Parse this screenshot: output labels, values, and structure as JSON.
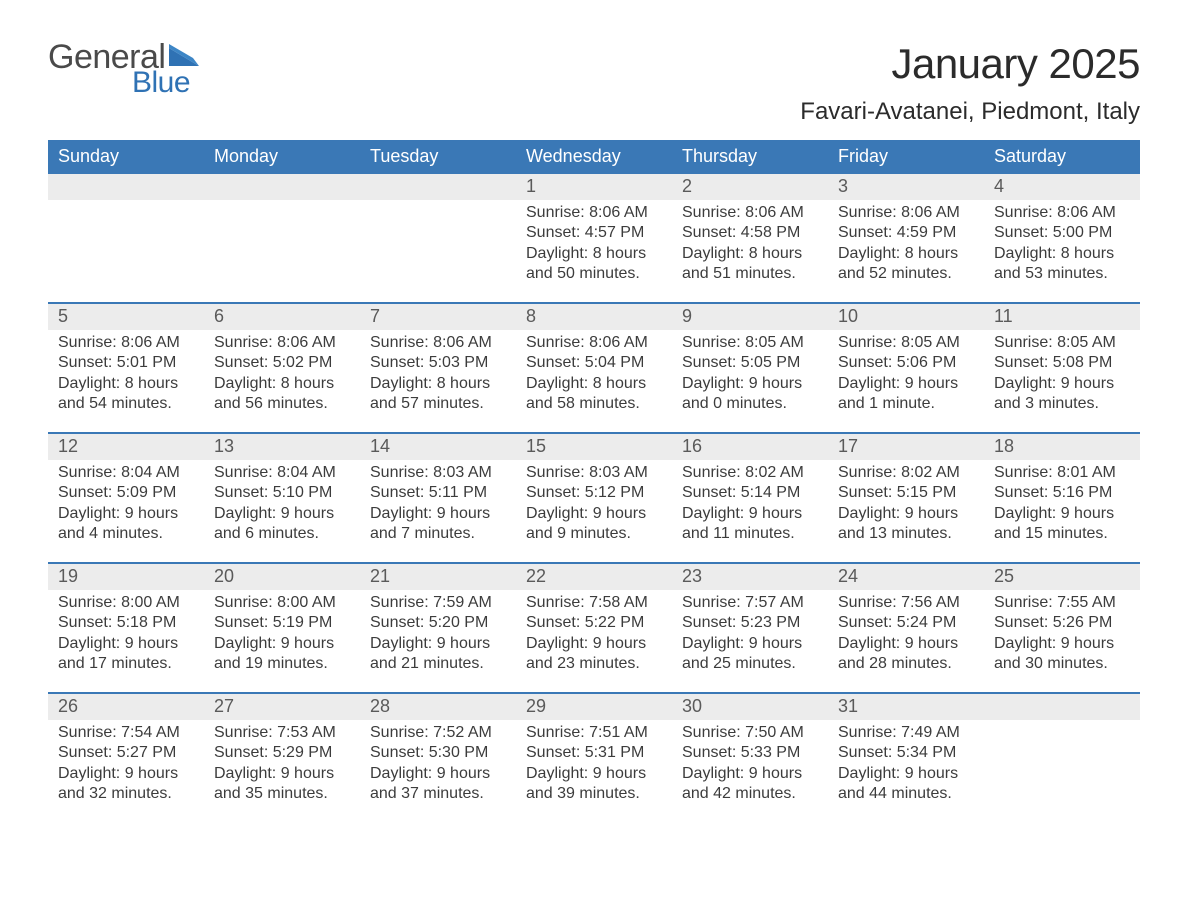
{
  "logo": {
    "general": "General",
    "blue": "Blue",
    "accent": "#2f72b4",
    "gray": "#4a4a4a"
  },
  "title": "January 2025",
  "location": "Favari-Avatanei, Piedmont, Italy",
  "colors": {
    "header_bg": "#3a78b6",
    "header_text": "#ffffff",
    "daynum_bg": "#ececec",
    "text": "#3c3c3c",
    "row_divider": "#3a78b6",
    "page_bg": "#ffffff"
  },
  "days_of_week": [
    "Sunday",
    "Monday",
    "Tuesday",
    "Wednesday",
    "Thursday",
    "Friday",
    "Saturday"
  ],
  "weeks": [
    [
      {
        "n": "",
        "sunrise": "",
        "sunset": "",
        "daylight1": "",
        "daylight2": "",
        "empty": true
      },
      {
        "n": "",
        "sunrise": "",
        "sunset": "",
        "daylight1": "",
        "daylight2": "",
        "empty": true
      },
      {
        "n": "",
        "sunrise": "",
        "sunset": "",
        "daylight1": "",
        "daylight2": "",
        "empty": true
      },
      {
        "n": "1",
        "sunrise": "Sunrise: 8:06 AM",
        "sunset": "Sunset: 4:57 PM",
        "daylight1": "Daylight: 8 hours",
        "daylight2": "and 50 minutes."
      },
      {
        "n": "2",
        "sunrise": "Sunrise: 8:06 AM",
        "sunset": "Sunset: 4:58 PM",
        "daylight1": "Daylight: 8 hours",
        "daylight2": "and 51 minutes."
      },
      {
        "n": "3",
        "sunrise": "Sunrise: 8:06 AM",
        "sunset": "Sunset: 4:59 PM",
        "daylight1": "Daylight: 8 hours",
        "daylight2": "and 52 minutes."
      },
      {
        "n": "4",
        "sunrise": "Sunrise: 8:06 AM",
        "sunset": "Sunset: 5:00 PM",
        "daylight1": "Daylight: 8 hours",
        "daylight2": "and 53 minutes."
      }
    ],
    [
      {
        "n": "5",
        "sunrise": "Sunrise: 8:06 AM",
        "sunset": "Sunset: 5:01 PM",
        "daylight1": "Daylight: 8 hours",
        "daylight2": "and 54 minutes."
      },
      {
        "n": "6",
        "sunrise": "Sunrise: 8:06 AM",
        "sunset": "Sunset: 5:02 PM",
        "daylight1": "Daylight: 8 hours",
        "daylight2": "and 56 minutes."
      },
      {
        "n": "7",
        "sunrise": "Sunrise: 8:06 AM",
        "sunset": "Sunset: 5:03 PM",
        "daylight1": "Daylight: 8 hours",
        "daylight2": "and 57 minutes."
      },
      {
        "n": "8",
        "sunrise": "Sunrise: 8:06 AM",
        "sunset": "Sunset: 5:04 PM",
        "daylight1": "Daylight: 8 hours",
        "daylight2": "and 58 minutes."
      },
      {
        "n": "9",
        "sunrise": "Sunrise: 8:05 AM",
        "sunset": "Sunset: 5:05 PM",
        "daylight1": "Daylight: 9 hours",
        "daylight2": "and 0 minutes."
      },
      {
        "n": "10",
        "sunrise": "Sunrise: 8:05 AM",
        "sunset": "Sunset: 5:06 PM",
        "daylight1": "Daylight: 9 hours",
        "daylight2": "and 1 minute."
      },
      {
        "n": "11",
        "sunrise": "Sunrise: 8:05 AM",
        "sunset": "Sunset: 5:08 PM",
        "daylight1": "Daylight: 9 hours",
        "daylight2": "and 3 minutes."
      }
    ],
    [
      {
        "n": "12",
        "sunrise": "Sunrise: 8:04 AM",
        "sunset": "Sunset: 5:09 PM",
        "daylight1": "Daylight: 9 hours",
        "daylight2": "and 4 minutes."
      },
      {
        "n": "13",
        "sunrise": "Sunrise: 8:04 AM",
        "sunset": "Sunset: 5:10 PM",
        "daylight1": "Daylight: 9 hours",
        "daylight2": "and 6 minutes."
      },
      {
        "n": "14",
        "sunrise": "Sunrise: 8:03 AM",
        "sunset": "Sunset: 5:11 PM",
        "daylight1": "Daylight: 9 hours",
        "daylight2": "and 7 minutes."
      },
      {
        "n": "15",
        "sunrise": "Sunrise: 8:03 AM",
        "sunset": "Sunset: 5:12 PM",
        "daylight1": "Daylight: 9 hours",
        "daylight2": "and 9 minutes."
      },
      {
        "n": "16",
        "sunrise": "Sunrise: 8:02 AM",
        "sunset": "Sunset: 5:14 PM",
        "daylight1": "Daylight: 9 hours",
        "daylight2": "and 11 minutes."
      },
      {
        "n": "17",
        "sunrise": "Sunrise: 8:02 AM",
        "sunset": "Sunset: 5:15 PM",
        "daylight1": "Daylight: 9 hours",
        "daylight2": "and 13 minutes."
      },
      {
        "n": "18",
        "sunrise": "Sunrise: 8:01 AM",
        "sunset": "Sunset: 5:16 PM",
        "daylight1": "Daylight: 9 hours",
        "daylight2": "and 15 minutes."
      }
    ],
    [
      {
        "n": "19",
        "sunrise": "Sunrise: 8:00 AM",
        "sunset": "Sunset: 5:18 PM",
        "daylight1": "Daylight: 9 hours",
        "daylight2": "and 17 minutes."
      },
      {
        "n": "20",
        "sunrise": "Sunrise: 8:00 AM",
        "sunset": "Sunset: 5:19 PM",
        "daylight1": "Daylight: 9 hours",
        "daylight2": "and 19 minutes."
      },
      {
        "n": "21",
        "sunrise": "Sunrise: 7:59 AM",
        "sunset": "Sunset: 5:20 PM",
        "daylight1": "Daylight: 9 hours",
        "daylight2": "and 21 minutes."
      },
      {
        "n": "22",
        "sunrise": "Sunrise: 7:58 AM",
        "sunset": "Sunset: 5:22 PM",
        "daylight1": "Daylight: 9 hours",
        "daylight2": "and 23 minutes."
      },
      {
        "n": "23",
        "sunrise": "Sunrise: 7:57 AM",
        "sunset": "Sunset: 5:23 PM",
        "daylight1": "Daylight: 9 hours",
        "daylight2": "and 25 minutes."
      },
      {
        "n": "24",
        "sunrise": "Sunrise: 7:56 AM",
        "sunset": "Sunset: 5:24 PM",
        "daylight1": "Daylight: 9 hours",
        "daylight2": "and 28 minutes."
      },
      {
        "n": "25",
        "sunrise": "Sunrise: 7:55 AM",
        "sunset": "Sunset: 5:26 PM",
        "daylight1": "Daylight: 9 hours",
        "daylight2": "and 30 minutes."
      }
    ],
    [
      {
        "n": "26",
        "sunrise": "Sunrise: 7:54 AM",
        "sunset": "Sunset: 5:27 PM",
        "daylight1": "Daylight: 9 hours",
        "daylight2": "and 32 minutes."
      },
      {
        "n": "27",
        "sunrise": "Sunrise: 7:53 AM",
        "sunset": "Sunset: 5:29 PM",
        "daylight1": "Daylight: 9 hours",
        "daylight2": "and 35 minutes."
      },
      {
        "n": "28",
        "sunrise": "Sunrise: 7:52 AM",
        "sunset": "Sunset: 5:30 PM",
        "daylight1": "Daylight: 9 hours",
        "daylight2": "and 37 minutes."
      },
      {
        "n": "29",
        "sunrise": "Sunrise: 7:51 AM",
        "sunset": "Sunset: 5:31 PM",
        "daylight1": "Daylight: 9 hours",
        "daylight2": "and 39 minutes."
      },
      {
        "n": "30",
        "sunrise": "Sunrise: 7:50 AM",
        "sunset": "Sunset: 5:33 PM",
        "daylight1": "Daylight: 9 hours",
        "daylight2": "and 42 minutes."
      },
      {
        "n": "31",
        "sunrise": "Sunrise: 7:49 AM",
        "sunset": "Sunset: 5:34 PM",
        "daylight1": "Daylight: 9 hours",
        "daylight2": "and 44 minutes."
      },
      {
        "n": "",
        "sunrise": "",
        "sunset": "",
        "daylight1": "",
        "daylight2": "",
        "empty": true
      }
    ]
  ]
}
